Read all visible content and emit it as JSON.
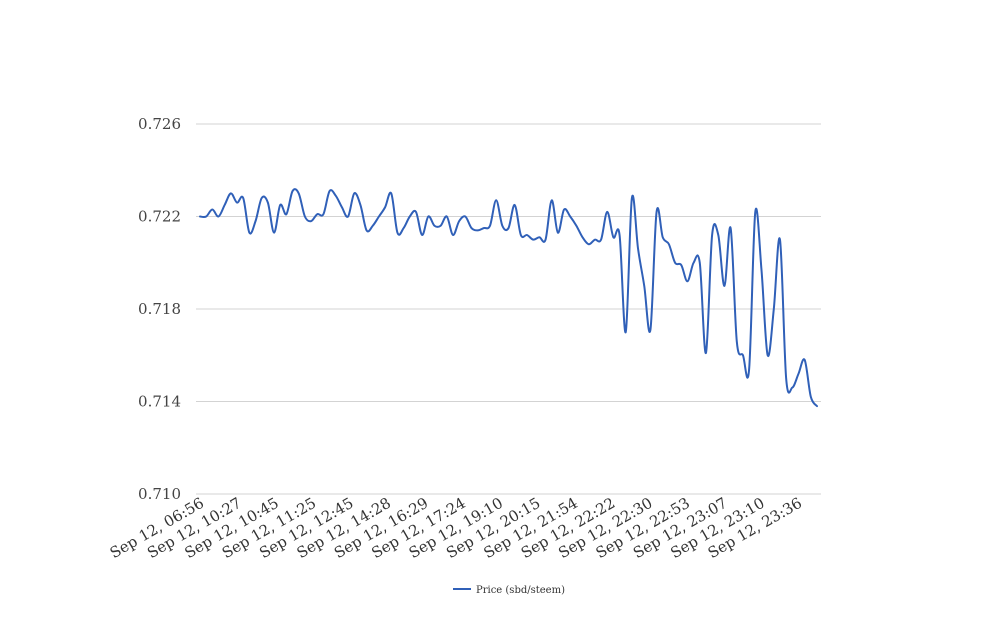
{
  "chart_data": {
    "type": "line",
    "title": "",
    "xlabel": "",
    "ylabel": "",
    "ylim": [
      0.71,
      0.726
    ],
    "y_ticks": [
      "0.726",
      "0.722",
      "0.718",
      "0.714",
      "0.710"
    ],
    "x_tick_labels": [
      "Sep 12, 06:56",
      "Sep 12, 10:27",
      "Sep 12, 10:45",
      "Sep 12, 11:25",
      "Sep 12, 12:45",
      "Sep 12, 14:28",
      "Sep 12, 16:29",
      "Sep 12, 17:24",
      "Sep 12, 19:10",
      "Sep 12, 20:15",
      "Sep 12, 21:54",
      "Sep 12, 22:22",
      "Sep 12, 22:30",
      "Sep 12, 22:53",
      "Sep 12, 23:07",
      "Sep 12, 23:10",
      "Sep 12, 23:36"
    ],
    "grid": true,
    "legend_position": "bottom",
    "colors": {
      "series": "#3060b8",
      "grid": "#d3d3d3",
      "background": "#ffffff"
    },
    "series": [
      {
        "name": "Price (sbd/steem)",
        "values": [
          0.722,
          0.722,
          0.7223,
          0.722,
          0.7225,
          0.723,
          0.7226,
          0.7228,
          0.7213,
          0.7218,
          0.7228,
          0.7226,
          0.7213,
          0.7225,
          0.7221,
          0.7231,
          0.723,
          0.722,
          0.7218,
          0.7221,
          0.7221,
          0.7231,
          0.7229,
          0.7224,
          0.722,
          0.723,
          0.7225,
          0.7214,
          0.7216,
          0.722,
          0.7224,
          0.723,
          0.7213,
          0.7215,
          0.722,
          0.7222,
          0.7212,
          0.722,
          0.7216,
          0.7216,
          0.722,
          0.7212,
          0.7218,
          0.722,
          0.7215,
          0.7214,
          0.7215,
          0.7216,
          0.7227,
          0.7216,
          0.7215,
          0.7225,
          0.7212,
          0.7212,
          0.721,
          0.7211,
          0.721,
          0.7227,
          0.7213,
          0.7223,
          0.722,
          0.7216,
          0.7211,
          0.7208,
          0.721,
          0.721,
          0.7222,
          0.7211,
          0.7212,
          0.717,
          0.7228,
          0.7206,
          0.719,
          0.7171,
          0.7222,
          0.7211,
          0.7208,
          0.72,
          0.7199,
          0.7192,
          0.72,
          0.72,
          0.7161,
          0.7212,
          0.7212,
          0.719,
          0.7215,
          0.7166,
          0.716,
          0.7154,
          0.7222,
          0.7197,
          0.716,
          0.718,
          0.721,
          0.715,
          0.7146,
          0.7152,
          0.7158,
          0.7142,
          0.7138
        ]
      }
    ]
  }
}
